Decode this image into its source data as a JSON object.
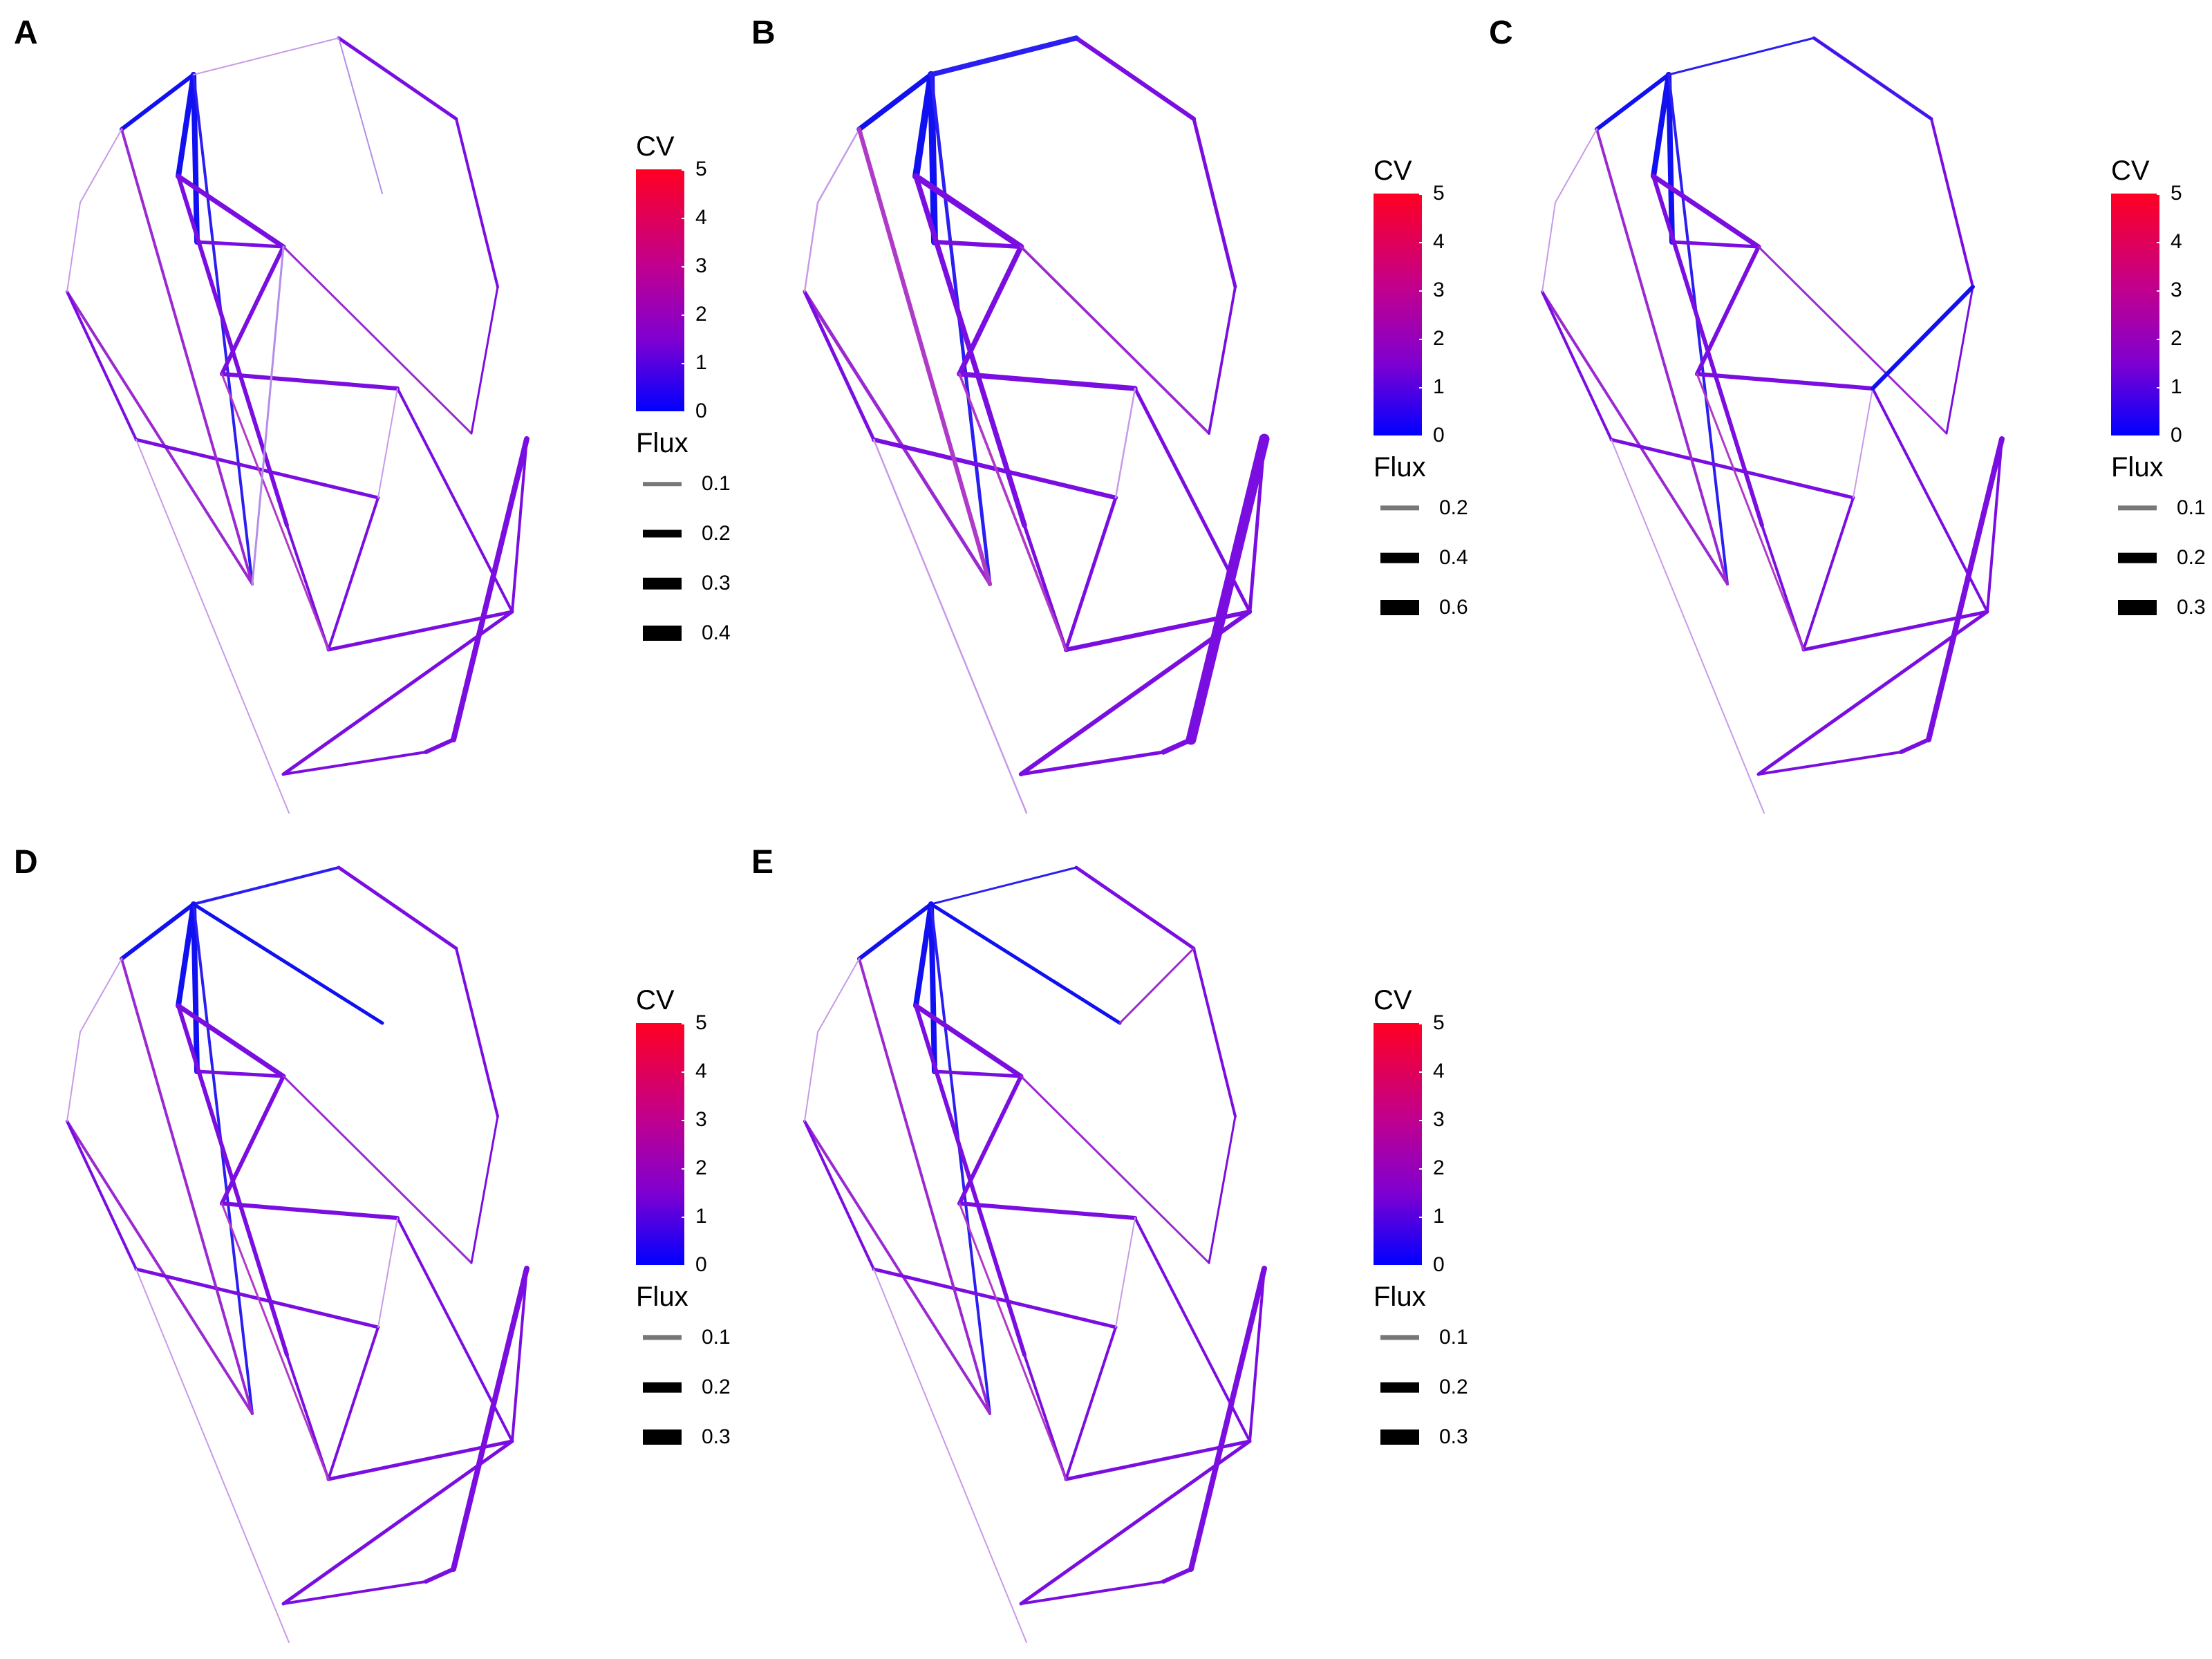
{
  "colors": {
    "low": "#0000ff",
    "mid": "#8a00e6",
    "high": "#ff0022"
  },
  "panels": [
    {
      "label": "A",
      "legend": {
        "cv_title": "CV",
        "cv_ticks": [
          "5",
          "4",
          "3",
          "2",
          "1",
          "0"
        ],
        "flux_title": "Flux",
        "flux_items": [
          {
            "label": "0.1",
            "value": 0.1
          },
          {
            "label": "0.2",
            "value": 0.2
          },
          {
            "label": "0.3",
            "value": 0.3
          },
          {
            "label": "0.4",
            "value": 0.4
          }
        ]
      }
    },
    {
      "label": "B",
      "legend": {
        "cv_title": "CV",
        "cv_ticks": [
          "5",
          "4",
          "3",
          "2",
          "1",
          "0"
        ],
        "flux_title": "Flux",
        "flux_items": [
          {
            "label": "0.2",
            "value": 0.2
          },
          {
            "label": "0.4",
            "value": 0.4
          },
          {
            "label": "0.6",
            "value": 0.6
          }
        ]
      }
    },
    {
      "label": "C",
      "legend": {
        "cv_title": "CV",
        "cv_ticks": [
          "5",
          "4",
          "3",
          "2",
          "1",
          "0"
        ],
        "flux_title": "Flux",
        "flux_items": [
          {
            "label": "0.1",
            "value": 0.1
          },
          {
            "label": "0.2",
            "value": 0.2
          },
          {
            "label": "0.3",
            "value": 0.3
          }
        ]
      }
    },
    {
      "label": "D",
      "legend": {
        "cv_title": "CV",
        "cv_ticks": [
          "5",
          "4",
          "3",
          "2",
          "1",
          "0"
        ],
        "flux_title": "Flux",
        "flux_items": [
          {
            "label": "0.1",
            "value": 0.1
          },
          {
            "label": "0.2",
            "value": 0.2
          },
          {
            "label": "0.3",
            "value": 0.3
          }
        ]
      }
    },
    {
      "label": "E",
      "legend": {
        "cv_title": "CV",
        "cv_ticks": [
          "5",
          "4",
          "3",
          "2",
          "1",
          "0"
        ],
        "flux_title": "Flux",
        "flux_items": [
          {
            "label": "0.1",
            "value": 0.1
          },
          {
            "label": "0.2",
            "value": 0.2
          },
          {
            "label": "0.3",
            "value": 0.3
          }
        ]
      }
    }
  ]
}
